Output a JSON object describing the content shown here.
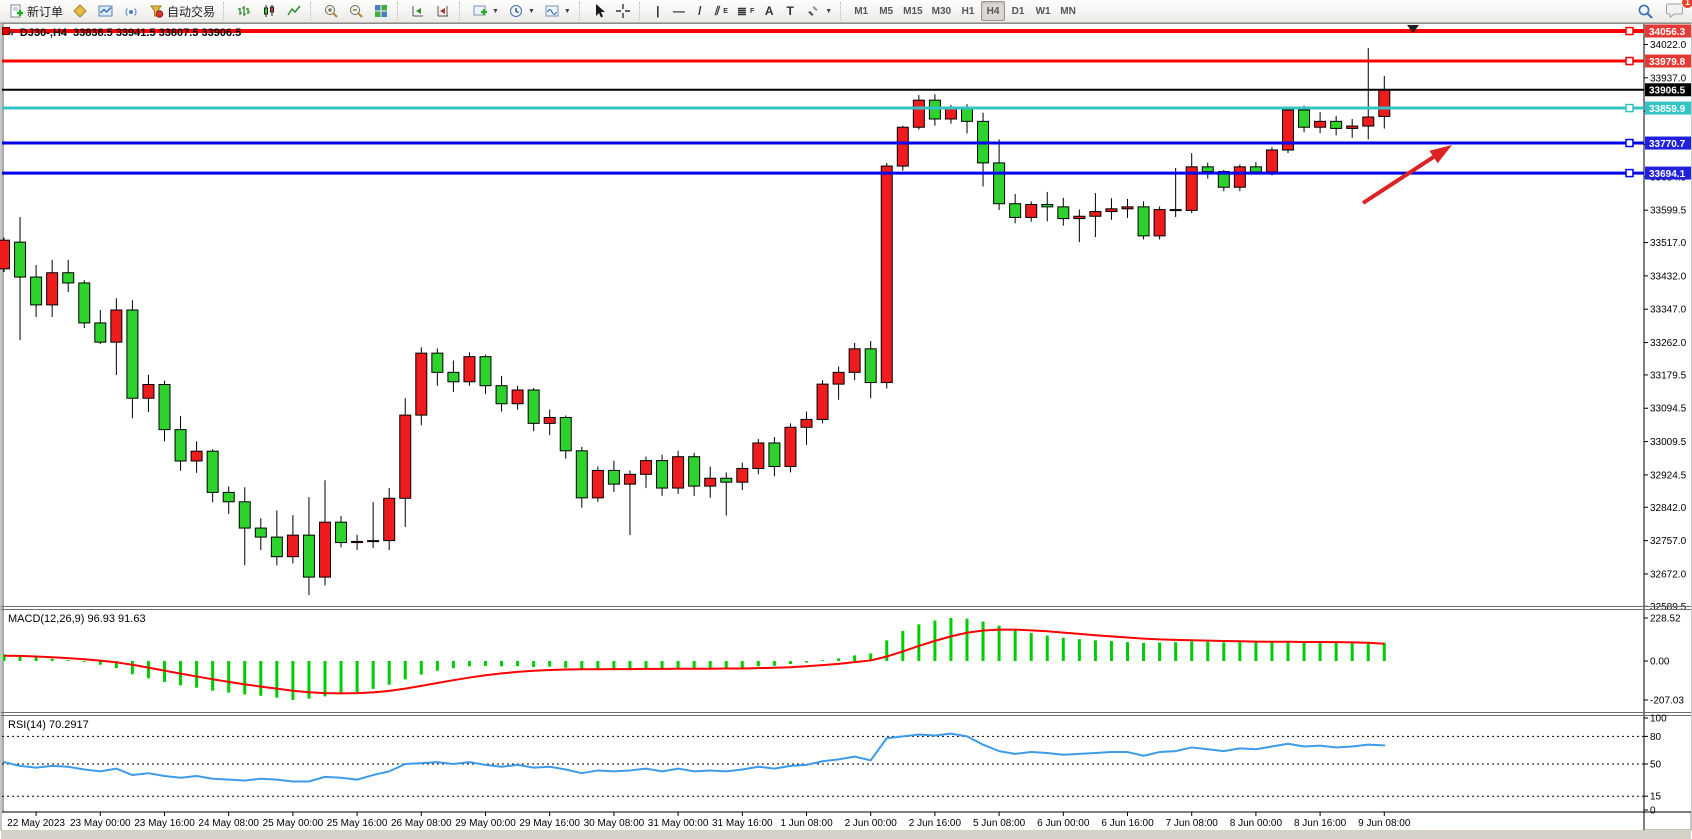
{
  "toolbar": {
    "new_order_label": "新订单",
    "autotrading_label": "自动交易",
    "chat_badge": "1",
    "icons": [
      "new-order-icon",
      "quotes-icon",
      "chart-window-icon",
      "signals-icon",
      "autotrading-icon",
      "bar-chart-type-icon",
      "candle-chart-type-icon",
      "line-chart-type-icon",
      "zoom-in-icon",
      "zoom-out-icon",
      "tile-windows-icon",
      "auto-scroll-icon",
      "chart-shift-icon",
      "indicators-icon",
      "periods-icon",
      "templates-icon",
      "cursor-icon",
      "crosshair-icon",
      "arrows-tool-icon",
      "search-icon",
      "chat-icon"
    ],
    "tools": [
      {
        "name": "vertical-line-tool",
        "glyph": "|"
      },
      {
        "name": "horizontal-line-tool",
        "glyph": "—"
      },
      {
        "name": "trendline-tool",
        "glyph": "/"
      },
      {
        "name": "channel-tool",
        "glyph": "⫽",
        "sub": "E"
      },
      {
        "name": "fibonacci-tool",
        "glyph": "≣",
        "sub": "F"
      },
      {
        "name": "text-tool",
        "glyph": "A"
      },
      {
        "name": "text-label-tool",
        "glyph": "T"
      }
    ],
    "timeframes": [
      {
        "label": "M1",
        "active": false
      },
      {
        "label": "M5",
        "active": false
      },
      {
        "label": "M15",
        "active": false
      },
      {
        "label": "M30",
        "active": false
      },
      {
        "label": "H1",
        "active": false
      },
      {
        "label": "H4",
        "active": true
      },
      {
        "label": "D1",
        "active": false
      },
      {
        "label": "W1",
        "active": false
      },
      {
        "label": "MN",
        "active": false
      }
    ]
  },
  "chart": {
    "title_symbol": "DJ30-,H4",
    "title_ohlc": "33838.5 33941.5 33807.5 33906.5",
    "macd_label": "MACD(12,26,9) 96.93 91.63",
    "rsi_label": "RSI(14) 70.2917"
  },
  "chart_data": {
    "type": "candlestick",
    "symbol": "DJ30-",
    "period": "H4",
    "title": "DJ30-,H4 33838.5 33941.5 33807.5 33906.5",
    "current_ohlc": {
      "open": 33838.5,
      "high": 33941.5,
      "low": 33807.5,
      "close": 33906.5
    },
    "colors": {
      "bull": "#ee1c1c",
      "bear": "#2dd22d",
      "outline": "#000000",
      "macd_hist": "#00cc00",
      "macd_signal": "#ff0000",
      "rsi_line": "#3e9be9"
    },
    "price_axis": {
      "y_top_price": 34074.2,
      "y_bottom_price": 32590.3
    },
    "price_ticks": [
      {
        "label": "34022.0",
        "value": 34022.0
      },
      {
        "label": "33937.0",
        "value": 33937.0
      },
      {
        "label": "33852.0",
        "value": 33852.0
      },
      {
        "label": "33767.0",
        "value": 33767.0
      },
      {
        "label": "33684.5",
        "value": 33684.5
      },
      {
        "label": "33599.5",
        "value": 33599.5
      },
      {
        "label": "33517.0",
        "value": 33517.0
      },
      {
        "label": "33432.0",
        "value": 33432.0
      },
      {
        "label": "33347.0",
        "value": 33347.0
      },
      {
        "label": "33262.0",
        "value": 33262.0
      },
      {
        "label": "33179.5",
        "value": 33179.5
      },
      {
        "label": "33094.5",
        "value": 33094.5
      },
      {
        "label": "33009.5",
        "value": 33009.5
      },
      {
        "label": "32924.5",
        "value": 32924.5
      },
      {
        "label": "32842.0",
        "value": 32842.0
      },
      {
        "label": "32757.0",
        "value": 32757.0
      },
      {
        "label": "32672.0",
        "value": 32672.0
      },
      {
        "label": "32589.5",
        "value": 32589.5
      }
    ],
    "hlines": [
      {
        "price": 34056.3,
        "label": "34056.3",
        "color": "#ff0000",
        "width": 4,
        "badge_bg": "#e53935",
        "badge_fg": "#ffffff",
        "handle": true
      },
      {
        "price": 33979.8,
        "label": "33979.8",
        "color": "#ff0000",
        "width": 3,
        "badge_bg": "#e53935",
        "badge_fg": "#ffffff",
        "handle": true
      },
      {
        "price": 33906.5,
        "label": "33906.5",
        "color": "#000000",
        "width": 2,
        "badge_bg": "#000000",
        "badge_fg": "#ffffff",
        "handle": false
      },
      {
        "price": 33859.9,
        "label": "33859.9",
        "color": "#35c4c4",
        "width": 3,
        "badge_bg": "#35c4c4",
        "badge_fg": "#ffffff",
        "handle": true
      },
      {
        "price": 33770.7,
        "label": "33770.7",
        "color": "#0000ee",
        "width": 3,
        "badge_bg": "#2020dd",
        "badge_fg": "#ffffff",
        "handle": true
      },
      {
        "price": 33694.1,
        "label": "33694.1",
        "color": "#0000ee",
        "width": 3,
        "badge_bg": "#2020dd",
        "badge_fg": "#ffffff",
        "handle": true
      }
    ],
    "time_labels": [
      {
        "text": "22 May 2023",
        "bar": 2
      },
      {
        "text": "23 May 00:00",
        "bar": 6
      },
      {
        "text": "23 May 16:00",
        "bar": 10
      },
      {
        "text": "24 May 08:00",
        "bar": 14
      },
      {
        "text": "25 May 00:00",
        "bar": 18
      },
      {
        "text": "25 May 16:00",
        "bar": 22
      },
      {
        "text": "26 May 08:00",
        "bar": 26
      },
      {
        "text": "29 May 00:00",
        "bar": 30
      },
      {
        "text": "29 May 16:00",
        "bar": 34
      },
      {
        "text": "30 May 08:00",
        "bar": 38
      },
      {
        "text": "31 May 00:00",
        "bar": 42
      },
      {
        "text": "31 May 16:00",
        "bar": 46
      },
      {
        "text": "1 Jun 08:00",
        "bar": 50
      },
      {
        "text": "2 Jun 00:00",
        "bar": 54
      },
      {
        "text": "2 Jun 16:00",
        "bar": 58
      },
      {
        "text": "5 Jun 08:00",
        "bar": 62
      },
      {
        "text": "6 Jun 00:00",
        "bar": 66
      },
      {
        "text": "6 Jun 16:00",
        "bar": 70
      },
      {
        "text": "7 Jun 08:00",
        "bar": 74
      },
      {
        "text": "8 Jun 00:00",
        "bar": 78
      },
      {
        "text": "8 Jun 16:00",
        "bar": 82
      },
      {
        "text": "9 Jun 08:00",
        "bar": 86
      }
    ],
    "bars": [
      [
        33450,
        33530,
        33442,
        33523
      ],
      [
        33518,
        33582,
        33268,
        33429
      ],
      [
        33429,
        33460,
        33327,
        33358
      ],
      [
        33358,
        33473,
        33327,
        33440
      ],
      [
        33440,
        33473,
        33391,
        33414
      ],
      [
        33414,
        33421,
        33299,
        33312
      ],
      [
        33312,
        33345,
        33258,
        33263
      ],
      [
        33263,
        33375,
        33179,
        33345
      ],
      [
        33345,
        33370,
        33069,
        33120
      ],
      [
        33120,
        33180,
        33085,
        33155
      ],
      [
        33155,
        33165,
        33010,
        33040
      ],
      [
        33040,
        33075,
        32935,
        32960
      ],
      [
        32960,
        33010,
        32930,
        32985
      ],
      [
        32985,
        32990,
        32855,
        32880
      ],
      [
        32880,
        32895,
        32825,
        32856
      ],
      [
        32856,
        32893,
        32694,
        32789
      ],
      [
        32789,
        32814,
        32733,
        32766
      ],
      [
        32766,
        32834,
        32694,
        32716
      ],
      [
        32716,
        32822,
        32699,
        32771
      ],
      [
        32771,
        32868,
        32618,
        32664
      ],
      [
        32664,
        32911,
        32643,
        32804
      ],
      [
        32804,
        32820,
        32740,
        32752
      ],
      [
        32752,
        32772,
        32733,
        32755
      ],
      [
        32755,
        32855,
        32738,
        32757
      ],
      [
        32757,
        32891,
        32733,
        32865
      ],
      [
        32865,
        33120,
        32792,
        33077
      ],
      [
        33077,
        33250,
        33051,
        33235
      ],
      [
        33235,
        33247,
        33152,
        33186
      ],
      [
        33186,
        33216,
        33136,
        33162
      ],
      [
        33162,
        33237,
        33152,
        33226
      ],
      [
        33226,
        33231,
        33131,
        33152
      ],
      [
        33152,
        33177,
        33086,
        33106
      ],
      [
        33106,
        33152,
        33091,
        33141
      ],
      [
        33141,
        33146,
        33036,
        33056
      ],
      [
        33056,
        33091,
        33026,
        33071
      ],
      [
        33071,
        33076,
        32966,
        32986
      ],
      [
        32986,
        32996,
        32841,
        32866
      ],
      [
        32866,
        32946,
        32856,
        32936
      ],
      [
        32936,
        32961,
        32881,
        32901
      ],
      [
        32901,
        32936,
        32771,
        32926
      ],
      [
        32926,
        32971,
        32891,
        32961
      ],
      [
        32961,
        32976,
        32871,
        32891
      ],
      [
        32891,
        32986,
        32876,
        32971
      ],
      [
        32971,
        32981,
        32871,
        32896
      ],
      [
        32896,
        32946,
        32866,
        32916
      ],
      [
        32916,
        32931,
        32821,
        32906
      ],
      [
        32906,
        32956,
        32886,
        32941
      ],
      [
        32941,
        33016,
        32926,
        33006
      ],
      [
        33006,
        33021,
        32921,
        32946
      ],
      [
        32946,
        33056,
        32931,
        33046
      ],
      [
        33046,
        33086,
        33001,
        33066
      ],
      [
        33066,
        33166,
        33056,
        33156
      ],
      [
        33156,
        33201,
        33116,
        33186
      ],
      [
        33186,
        33261,
        33166,
        33246
      ],
      [
        33246,
        33266,
        33120,
        33160
      ],
      [
        33160,
        33720,
        33145,
        33712
      ],
      [
        33712,
        33815,
        33700,
        33811
      ],
      [
        33811,
        33893,
        33805,
        33880
      ],
      [
        33880,
        33895,
        33815,
        33832
      ],
      [
        33832,
        33868,
        33820,
        33860
      ],
      [
        33860,
        33870,
        33795,
        33826
      ],
      [
        33826,
        33848,
        33660,
        33720
      ],
      [
        33720,
        33780,
        33600,
        33616
      ],
      [
        33616,
        33641,
        33566,
        33581
      ],
      [
        33581,
        33622,
        33570,
        33614
      ],
      [
        33614,
        33646,
        33571,
        33608
      ],
      [
        33608,
        33631,
        33560,
        33578
      ],
      [
        33578,
        33601,
        33518,
        33584
      ],
      [
        33584,
        33643,
        33531,
        33596
      ],
      [
        33596,
        33630,
        33575,
        33603
      ],
      [
        33603,
        33628,
        33580,
        33608
      ],
      [
        33608,
        33622,
        33525,
        33534
      ],
      [
        33534,
        33609,
        33525,
        33601
      ],
      [
        33601,
        33707,
        33582,
        33599
      ],
      [
        33599,
        33745,
        33592,
        33710
      ],
      [
        33710,
        33721,
        33680,
        33698
      ],
      [
        33698,
        33702,
        33648,
        33658
      ],
      [
        33658,
        33716,
        33648,
        33710
      ],
      [
        33710,
        33722,
        33690,
        33697
      ],
      [
        33697,
        33760,
        33688,
        33753
      ],
      [
        33753,
        33862,
        33745,
        33855
      ],
      [
        33855,
        33866,
        33798,
        33811
      ],
      [
        33811,
        33850,
        33796,
        33826
      ],
      [
        33826,
        33840,
        33790,
        33808
      ],
      [
        33808,
        33832,
        33784,
        33814
      ],
      [
        33814,
        34013,
        33780,
        33837
      ],
      [
        33838.5,
        33941.5,
        33807.5,
        33906.5
      ]
    ],
    "macd": {
      "params": "12,26,9",
      "current_main": 96.93,
      "current_signal": 91.63,
      "ticks": [
        {
          "label": "228.52",
          "value": 228.52
        },
        {
          "label": "0.00",
          "value": 0
        },
        {
          "label": "-207.03",
          "value": -207.03
        }
      ],
      "hist": [
        35,
        30,
        20,
        12,
        5,
        -5,
        -20,
        -38,
        -70,
        -92,
        -112,
        -130,
        -142,
        -158,
        -168,
        -178,
        -185,
        -195,
        -207.03,
        -200,
        -188,
        -176,
        -165,
        -148,
        -126,
        -98,
        -72,
        -52,
        -38,
        -28,
        -26,
        -28,
        -27,
        -32,
        -30,
        -36,
        -46,
        -43,
        -41,
        -43,
        -38,
        -41,
        -38,
        -41,
        -39,
        -41,
        -36,
        -28,
        -26,
        -16,
        -8,
        4,
        14,
        30,
        40,
        110,
        160,
        195,
        215,
        228.52,
        225,
        210,
        188,
        165,
        148,
        135,
        124,
        116,
        110,
        106,
        100,
        96,
        98,
        100,
        104,
        102,
        99,
        100,
        98,
        99,
        103,
        101,
        99,
        96,
        95,
        99,
        96.93
      ],
      "signal": [
        28,
        27,
        24,
        20,
        15,
        9,
        2,
        -7,
        -20,
        -35,
        -51,
        -67,
        -82,
        -97,
        -111,
        -124,
        -136,
        -147,
        -158,
        -166,
        -171,
        -172,
        -171,
        -167,
        -159,
        -147,
        -132,
        -117,
        -102,
        -88,
        -76,
        -66,
        -58,
        -52,
        -48,
        -45,
        -44,
        -44,
        -43,
        -43,
        -42,
        -42,
        -41,
        -41,
        -41,
        -40,
        -40,
        -38,
        -36,
        -33,
        -28,
        -22,
        -15,
        -6,
        3,
        24,
        51,
        80,
        107,
        131,
        150,
        162,
        167,
        167,
        163,
        158,
        151,
        144,
        137,
        131,
        125,
        119,
        115,
        112,
        110,
        108,
        106,
        105,
        103,
        102,
        102,
        101,
        101,
        100,
        99,
        97,
        91.63
      ]
    },
    "rsi": {
      "period": 14,
      "current": 70.2917,
      "levels": [
        80,
        50,
        15
      ],
      "ticks": [
        {
          "label": "100",
          "value": 100
        },
        {
          "label": "80",
          "value": 80
        },
        {
          "label": "50",
          "value": 50
        },
        {
          "label": "15",
          "value": 15
        },
        {
          "label": "0",
          "value": 0
        }
      ],
      "values": [
        52,
        48,
        46,
        48,
        47,
        44,
        42,
        45,
        38,
        40,
        37,
        35,
        37,
        34,
        33,
        32,
        34,
        33,
        31,
        31,
        36,
        35,
        33,
        38,
        42,
        50,
        51,
        52,
        50,
        52,
        49,
        47,
        49,
        46,
        47,
        44,
        40,
        43,
        42,
        43,
        45,
        42,
        45,
        42,
        43,
        42,
        44,
        47,
        45,
        48,
        49,
        53,
        55,
        58,
        54,
        78,
        80,
        82,
        81,
        83,
        80,
        71,
        64,
        61,
        63,
        62,
        60,
        61,
        62,
        63,
        63,
        59,
        63,
        64,
        68,
        66,
        64,
        67,
        66,
        69,
        72,
        69,
        70,
        68,
        69,
        71,
        70.29
      ]
    },
    "annotations": [
      {
        "type": "arrow",
        "from": [
          1363,
          203
        ],
        "to": [
          1452,
          145
        ],
        "color": "#dd2222",
        "width": 4
      }
    ]
  }
}
